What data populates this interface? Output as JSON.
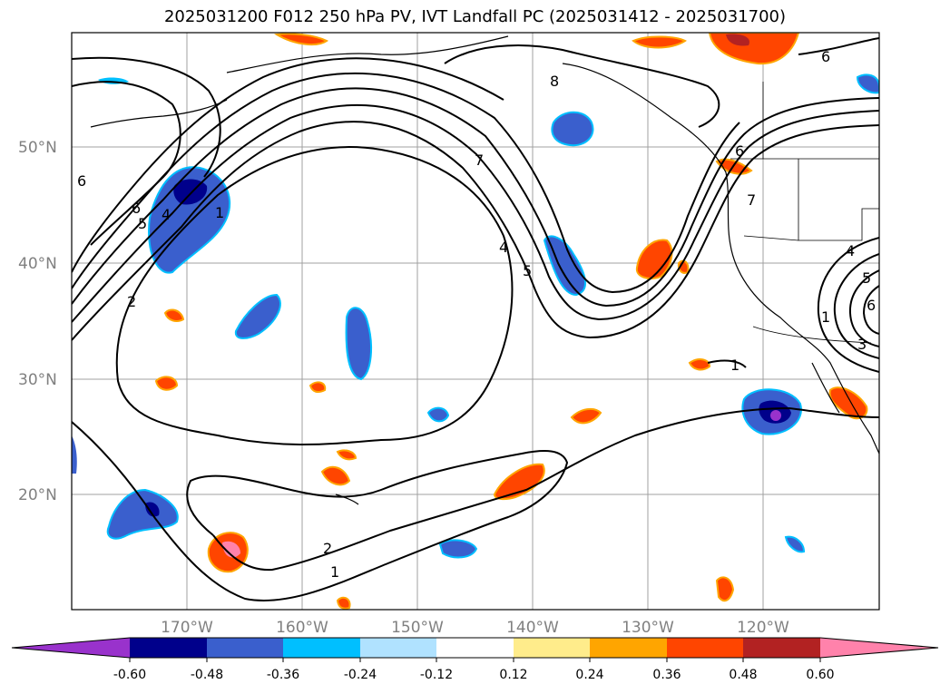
{
  "title": "2025031200 F012 250 hPa PV, IVT Landfall PC (2025031412 - 2025031700)",
  "map": {
    "lat_ticks": [
      "50°N",
      "40°N",
      "30°N",
      "20°N"
    ],
    "lon_ticks": [
      "170°W",
      "160°W",
      "150°W",
      "140°W",
      "130°W",
      "120°W"
    ],
    "contour_labels": [
      "8",
      "7",
      "6",
      "6",
      "5",
      "4",
      "4",
      "1",
      "2",
      "5",
      "6",
      "6",
      "2",
      "1",
      "1",
      "4",
      "5",
      "6",
      "3",
      "1",
      "7"
    ],
    "grid": true
  },
  "colorbar": {
    "colors": [
      "#9932cc",
      "#00008b",
      "#3a5fcd",
      "#00bfff",
      "#b0e2ff",
      "#ffffff",
      "#ffec8b",
      "#ffa500",
      "#ff4500",
      "#b22222",
      "#ff82ab"
    ],
    "ticks": [
      "-0.60",
      "-0.48",
      "-0.36",
      "-0.24",
      "-0.12",
      "0.12",
      "0.24",
      "0.36",
      "0.48",
      "0.60"
    ]
  }
}
